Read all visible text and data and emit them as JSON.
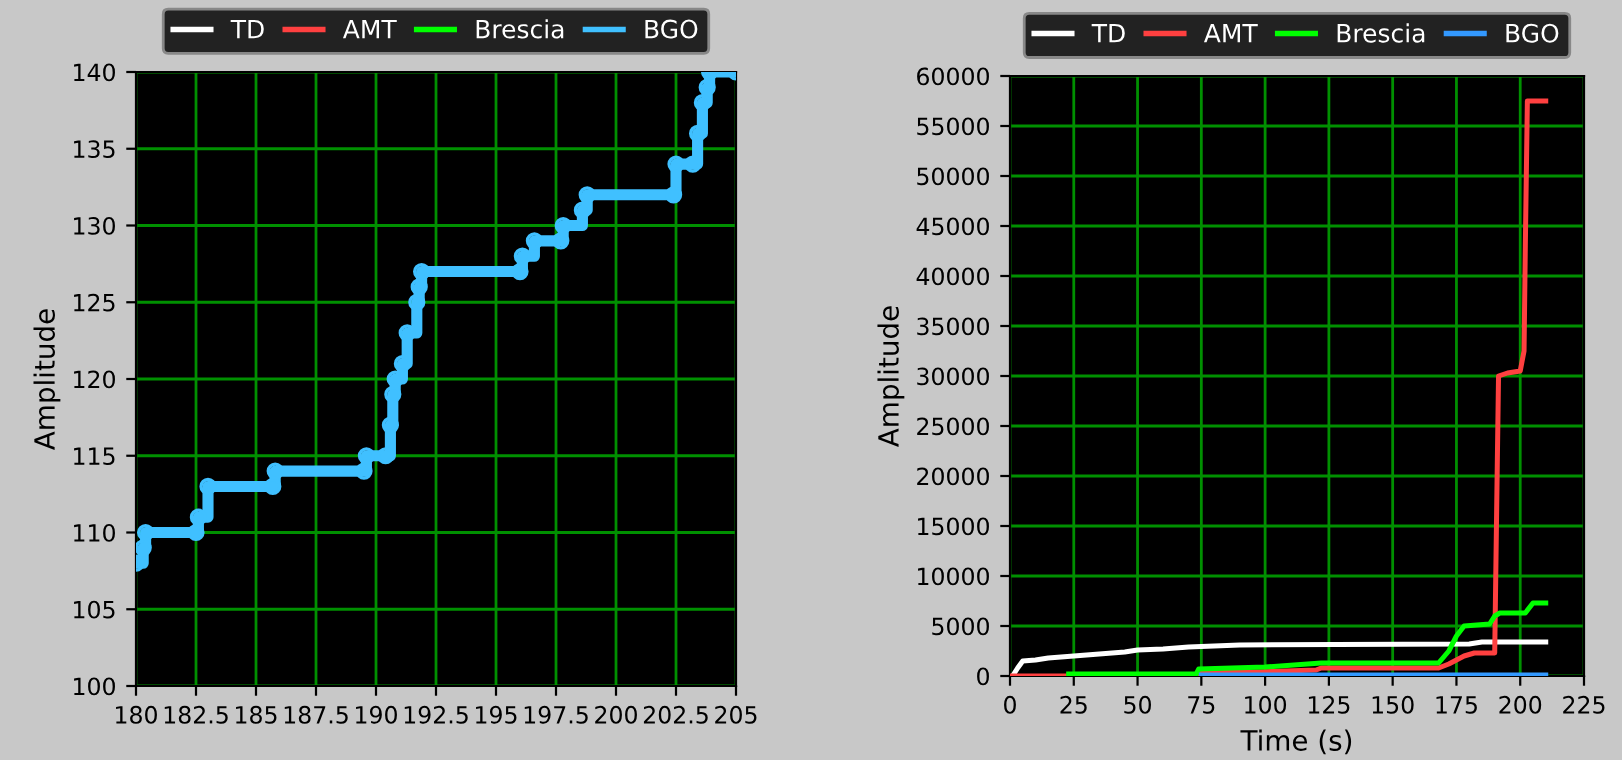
{
  "chart_data": [
    {
      "type": "line",
      "ylabel": "Amplitude",
      "xlim": [
        180,
        205
      ],
      "ylim": [
        100,
        140
      ],
      "xticks": [
        180,
        182.5,
        185,
        187.5,
        190,
        192.5,
        195,
        197.5,
        200,
        202.5,
        205
      ],
      "yticks": [
        100,
        105,
        110,
        115,
        120,
        125,
        130,
        135,
        140
      ],
      "grid": true,
      "legend": "top",
      "line_style": "solid",
      "series": [
        {
          "name": "TD",
          "color": "#ffffff"
        },
        {
          "name": "AMT",
          "color": "#ff4040"
        },
        {
          "name": "Brescia",
          "color": "#00ff00"
        },
        {
          "name": "BGO",
          "color": "#40c0ff",
          "type": "step",
          "marker": "circle",
          "x": [
            180.0,
            180.3,
            180.4,
            182.5,
            182.6,
            183.0,
            185.7,
            185.8,
            189.5,
            189.6,
            190.4,
            190.6,
            190.7,
            190.8,
            191.1,
            191.3,
            191.7,
            191.8,
            191.9,
            196.0,
            196.1,
            196.6,
            197.7,
            197.8,
            198.6,
            198.8,
            202.4,
            202.5,
            203.2,
            203.4,
            203.6,
            203.8,
            203.9,
            205.0
          ],
          "values": [
            108,
            109,
            110,
            110,
            111,
            113,
            113,
            114,
            114,
            115,
            115,
            117,
            119,
            120,
            121,
            123,
            125,
            126,
            127,
            127,
            128,
            129,
            129,
            130,
            131,
            132,
            132,
            134,
            134,
            136,
            138,
            139,
            140,
            140
          ]
        }
      ]
    },
    {
      "type": "line",
      "xlabel": "Time (s)",
      "ylabel": "Amplitude",
      "xlim": [
        0,
        225
      ],
      "ylim": [
        0,
        60000
      ],
      "xticks": [
        0,
        25,
        50,
        75,
        100,
        125,
        150,
        175,
        200,
        225
      ],
      "yticks": [
        0,
        5000,
        10000,
        15000,
        20000,
        25000,
        30000,
        35000,
        40000,
        45000,
        50000,
        55000,
        60000
      ],
      "grid": true,
      "legend": "top",
      "line_style": "solid",
      "series": [
        {
          "name": "TD",
          "color": "#ffffff",
          "x": [
            1,
            3,
            5,
            10,
            15,
            25,
            35,
            45,
            50,
            60,
            70,
            90,
            180,
            185,
            210
          ],
          "values": [
            0,
            800,
            1500,
            1600,
            1800,
            2000,
            2200,
            2400,
            2600,
            2700,
            2900,
            3100,
            3200,
            3400,
            3400
          ]
        },
        {
          "name": "AMT",
          "color": "#ff4040",
          "x": [
            0,
            73,
            74,
            95,
            120,
            122,
            168,
            172,
            178,
            182,
            190,
            191,
            191.5,
            195,
            200,
            201.5,
            202,
            202.8,
            210
          ],
          "values": [
            0,
            0,
            300,
            400,
            600,
            800,
            800,
            1200,
            2000,
            2300,
            2300,
            21000,
            30000,
            30300,
            30500,
            32500,
            43000,
            57500,
            57500
          ]
        },
        {
          "name": "Brescia",
          "color": "#00ff00",
          "x": [
            23,
            73,
            74,
            100,
            122,
            168,
            172,
            175,
            178,
            188,
            190,
            192,
            202,
            205,
            210
          ],
          "values": [
            200,
            200,
            700,
            900,
            1300,
            1300,
            2500,
            4000,
            5000,
            5200,
            6000,
            6300,
            6300,
            7300,
            7300
          ]
        },
        {
          "name": "BGO",
          "color": "#3399ff",
          "x": [
            75,
            210
          ],
          "values": [
            100,
            100
          ]
        }
      ]
    }
  ]
}
